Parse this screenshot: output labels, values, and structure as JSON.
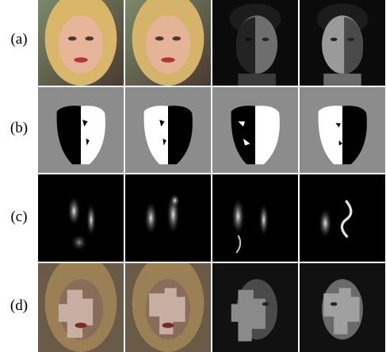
{
  "figure": {
    "rows": [
      {
        "label": "(a)",
        "kind": "photo"
      },
      {
        "label": "(b)",
        "kind": "mask"
      },
      {
        "label": "(c)",
        "kind": "heatmap"
      },
      {
        "label": "(d)",
        "kind": "overlay"
      }
    ],
    "columns": [
      {
        "subject": "blonde-woman",
        "tone": "color"
      },
      {
        "subject": "blonde-woman",
        "tone": "color"
      },
      {
        "subject": "young-man",
        "tone": "grayscale"
      },
      {
        "subject": "young-man",
        "tone": "grayscale"
      }
    ]
  }
}
